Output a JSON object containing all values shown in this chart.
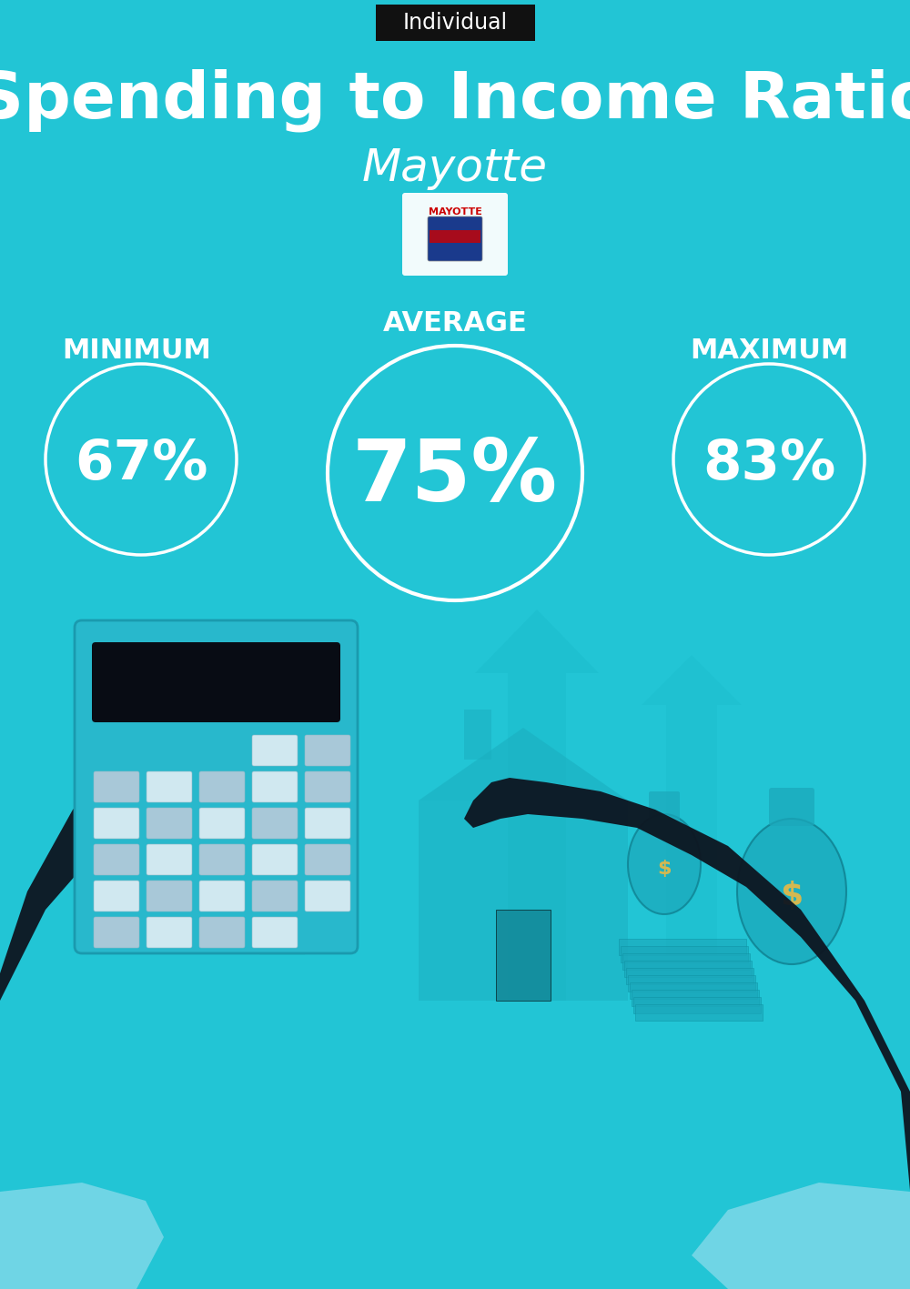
{
  "title": "Spending to Income Ratio",
  "subtitle": "Mayotte",
  "tag_label": "Individual",
  "bg_color": "#22C5D5",
  "tag_bg": "#111111",
  "tag_text_color": "#ffffff",
  "title_color": "#ffffff",
  "subtitle_color": "#ffffff",
  "label_color": "#ffffff",
  "value_color": "#ffffff",
  "circle_color": "#ffffff",
  "min_label": "MINIMUM",
  "avg_label": "AVERAGE",
  "max_label": "MAXIMUM",
  "min_value": "67%",
  "avg_value": "75%",
  "max_value": "83%",
  "label_fontsize": 22,
  "value_fontsize_small": 44,
  "value_fontsize_large": 68,
  "title_fontsize": 52,
  "subtitle_fontsize": 36,
  "tag_fontsize": 17
}
